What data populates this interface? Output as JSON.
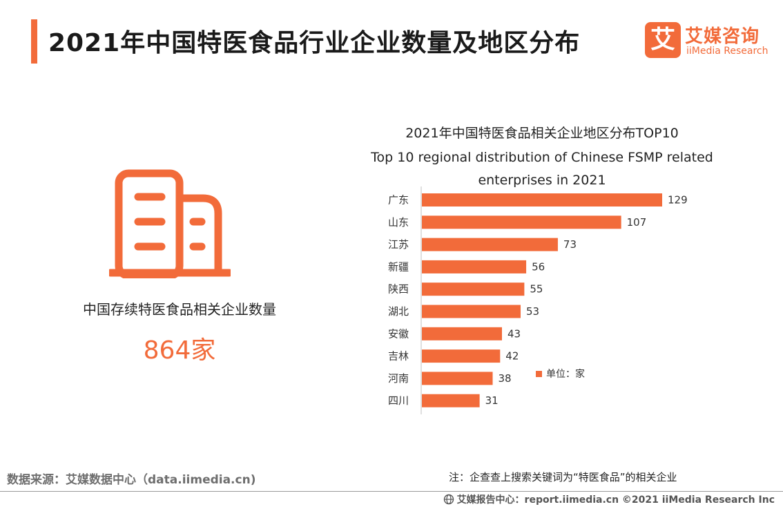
{
  "header": {
    "title": "2021年中国特医食品行业企业数量及地区分布"
  },
  "logo": {
    "badge": "艾",
    "name_cn": "艾媒咨询",
    "name_en": "iiMedia Research"
  },
  "stat": {
    "icon": "building-icon",
    "label": "中国存续特医食品相关企业数量",
    "value": "864家"
  },
  "colors": {
    "accent": "#f26b3a",
    "bar": "#f26b3a",
    "text": "#222222"
  },
  "chart_data": {
    "type": "bar",
    "orientation": "horizontal",
    "title": "2021年中国特医食品相关企业地区分布TOP10",
    "subtitle": "Top 10 regional distribution of  Chinese FSMP related enterprises in 2021",
    "categories": [
      "广东",
      "山东",
      "江苏",
      "新疆",
      "陕西",
      "湖北",
      "安徽",
      "吉林",
      "河南",
      "四川"
    ],
    "values": [
      129,
      107,
      73,
      56,
      55,
      53,
      43,
      42,
      38,
      31
    ],
    "legend": "单位：家",
    "legend_position": "right",
    "xlim": [
      0,
      129
    ],
    "grid": false
  },
  "footer": {
    "source": "数据来源：艾媒数据中心（data.iimedia.cn)",
    "note": "注：企查查上搜索关键词为“特医食品”的相关企业",
    "copyright": "艾媒报告中心：report.iimedia.cn  ©2021  iiMedia Research  Inc"
  }
}
